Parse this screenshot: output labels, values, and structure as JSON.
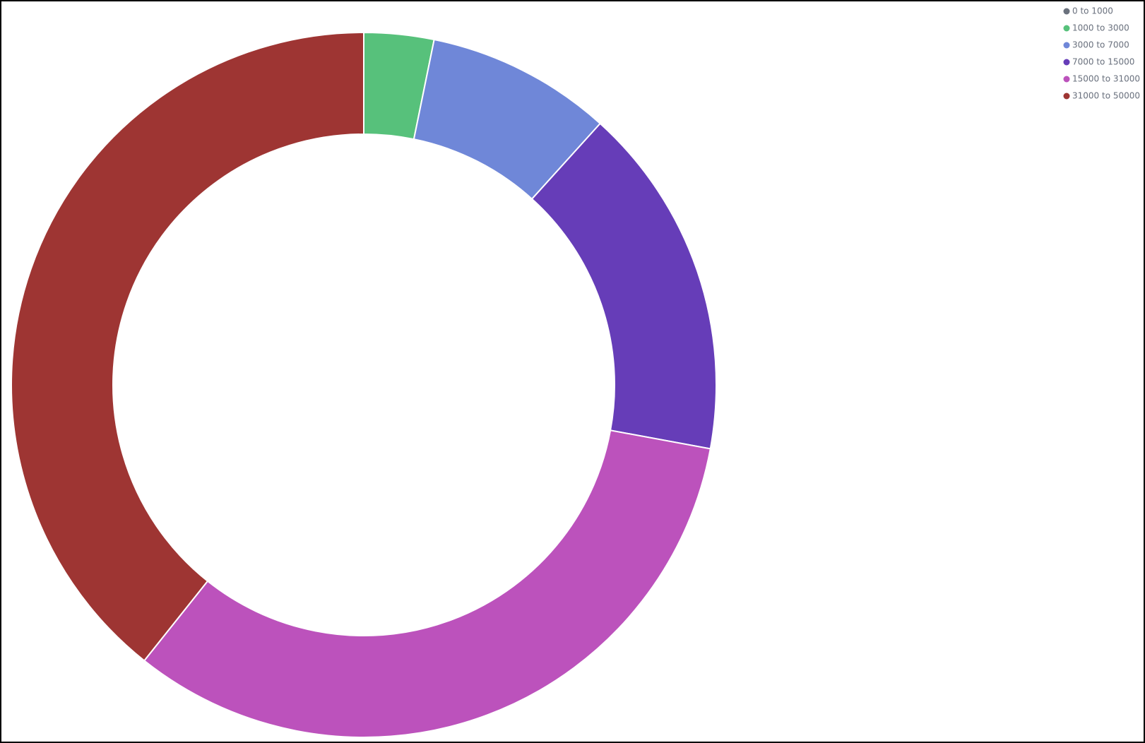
{
  "chart_data": {
    "type": "donut",
    "categories": [
      "0 to 1000",
      "1000 to 3000",
      "3000 to 7000",
      "7000 to 15000",
      "15000 to 31000",
      "31000 to 50000"
    ],
    "values": [
      0,
      3.2,
      8.5,
      16.2,
      32.8,
      39.3
    ],
    "colors": [
      "#6a717d",
      "#57c17b",
      "#6f87d8",
      "#663db8",
      "#bc52bc",
      "#9e3533"
    ],
    "legend": "top-right"
  }
}
